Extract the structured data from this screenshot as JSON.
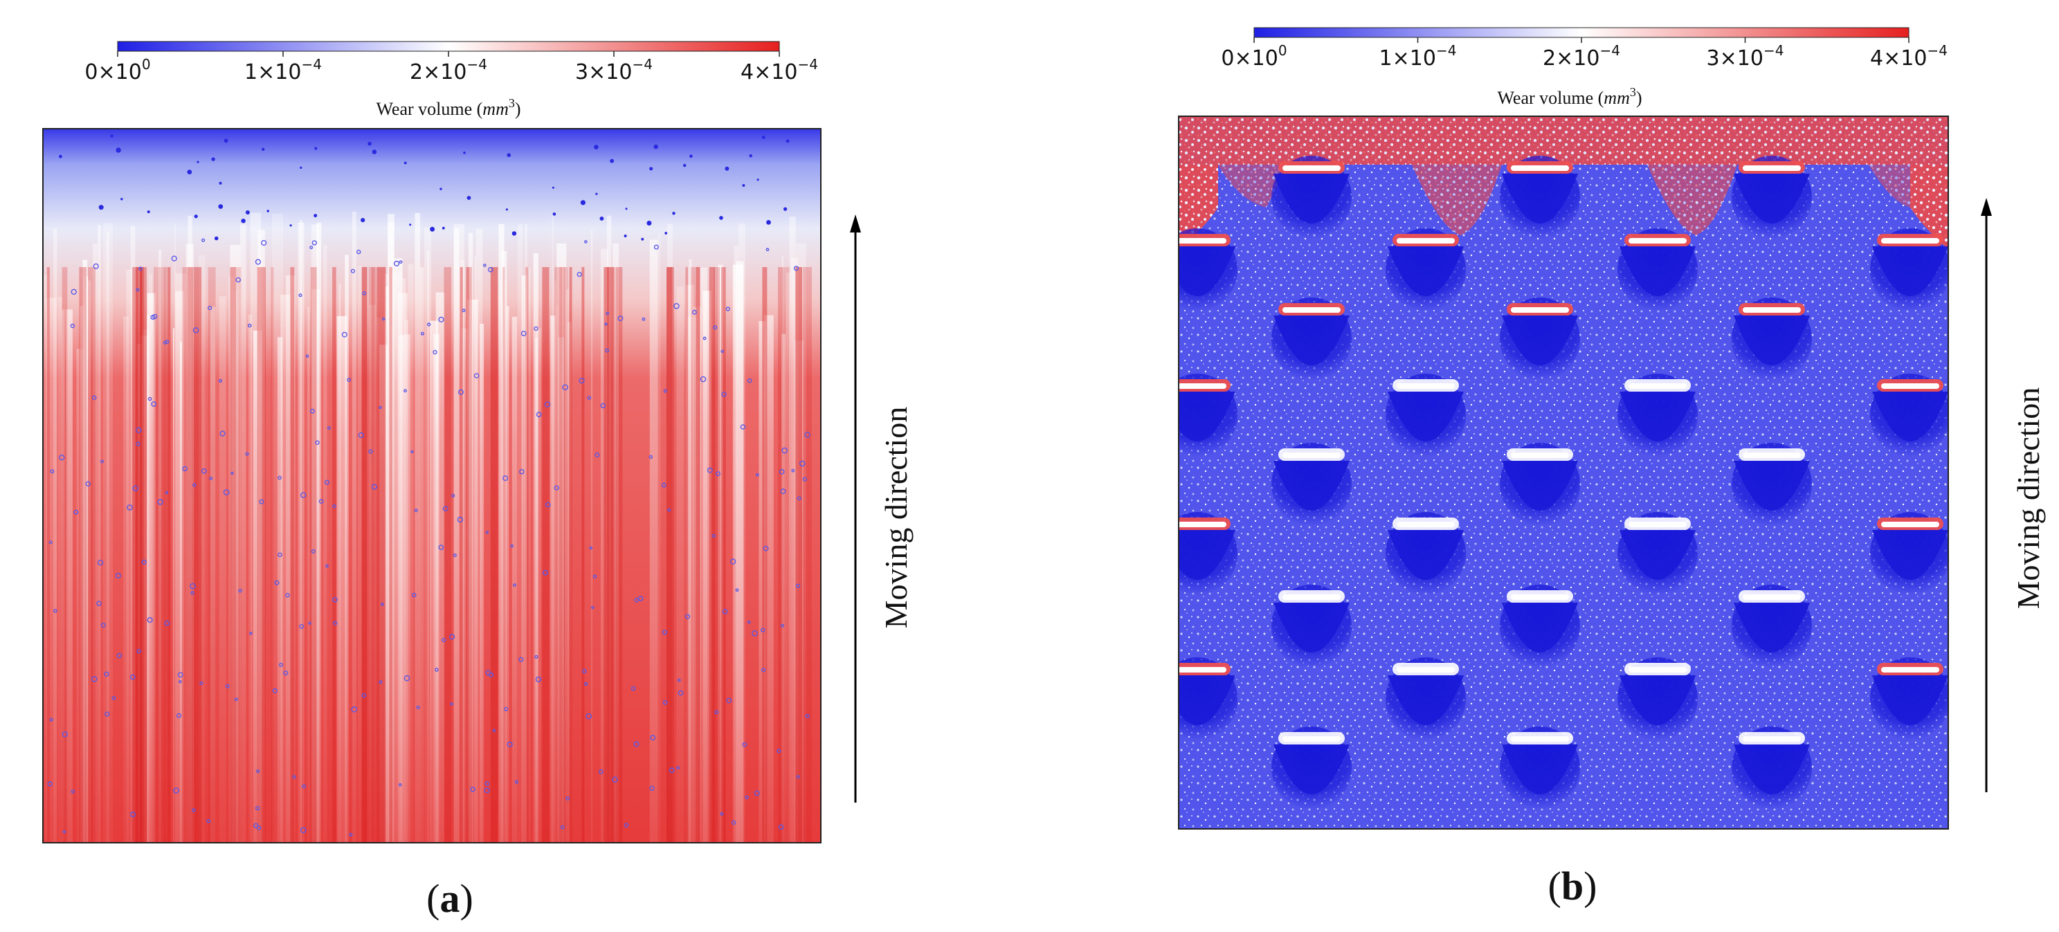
{
  "chart_data": [
    {
      "type": "heatmap",
      "panel_label_letter": "a",
      "panel_label": "(a)",
      "colorbar": {
        "label_text": "Wear volume (",
        "label_unit": "mm",
        "label_unit_exp": "3",
        "label_close": ")",
        "colormap": "bwr",
        "vmin": 0,
        "vmax": 0.0004,
        "colors": [
          "#1f1fe6",
          "#ffffff",
          "#e61f1f"
        ],
        "ticks": [
          {
            "mant": "0",
            "exp": "0",
            "value": 0
          },
          {
            "mant": "1",
            "exp": "−4",
            "value": 0.0001
          },
          {
            "mant": "2",
            "exp": "−4",
            "value": 0.0002
          },
          {
            "mant": "3",
            "exp": "−4",
            "value": 0.0003
          },
          {
            "mant": "4",
            "exp": "−4",
            "value": 0.0004
          }
        ]
      },
      "pattern": "vertical streaks, low wear near top edge, high wear elsewhere",
      "arrow_label": "Moving direction"
    },
    {
      "type": "heatmap",
      "panel_label_letter": "b",
      "panel_label": "(b)",
      "colorbar": {
        "label_text": "Wear volume (",
        "label_unit": "mm",
        "label_unit_exp": "3",
        "label_close": ")",
        "colormap": "bwr",
        "vmin": 0,
        "vmax": 0.0004,
        "colors": [
          "#1f1fe6",
          "#ffffff",
          "#e61f1f"
        ],
        "ticks": [
          {
            "mant": "0",
            "exp": "0",
            "value": 0
          },
          {
            "mant": "1",
            "exp": "−4",
            "value": 0.0001
          },
          {
            "mant": "2",
            "exp": "−4",
            "value": 0.0002
          },
          {
            "mant": "3",
            "exp": "−4",
            "value": 0.0003
          },
          {
            "mant": "4",
            "exp": "−4",
            "value": 0.0004
          }
        ]
      },
      "pattern": "low wear overall with staggered array of textured dimples, high wear along top edge",
      "arrow_label": "Moving direction"
    }
  ]
}
